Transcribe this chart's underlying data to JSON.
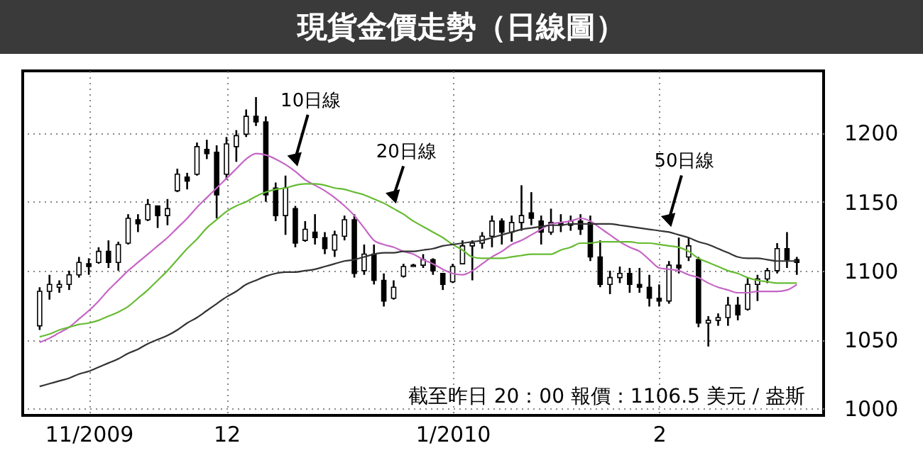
{
  "chart_data": {
    "type": "candlestick",
    "title": "現貨金價走勢（日線圖）",
    "annotations": [
      "截至昨日 20：00 報價：1106.5 美元 / 盎斯"
    ],
    "categories": [
      null,
      null,
      null,
      null,
      null,
      "11/2009",
      null,
      null,
      null,
      null,
      null,
      null,
      null,
      null,
      null,
      null,
      null,
      null,
      null,
      "12",
      null,
      null,
      null,
      null,
      null,
      null,
      null,
      null,
      null,
      null,
      null,
      null,
      null,
      null,
      null,
      null,
      null,
      null,
      null,
      null,
      null,
      null,
      "1/2010",
      null,
      null,
      null,
      null,
      null,
      null,
      null,
      null,
      null,
      null,
      null,
      null,
      null,
      null,
      null,
      null,
      null,
      null,
      null,
      null,
      "2",
      null,
      null,
      null,
      null,
      null,
      null,
      null,
      null,
      null,
      null,
      null,
      null,
      null,
      null
    ],
    "ohlc": [
      [
        1060,
        1088,
        1057,
        1085
      ],
      [
        1085,
        1097,
        1079,
        1090
      ],
      [
        1088,
        1093,
        1084,
        1090
      ],
      [
        1090,
        1100,
        1086,
        1097
      ],
      [
        1097,
        1110,
        1095,
        1106
      ],
      [
        1105,
        1109,
        1097,
        1103
      ],
      [
        1106,
        1117,
        1105,
        1114
      ],
      [
        1114,
        1122,
        1102,
        1106
      ],
      [
        1106,
        1121,
        1100,
        1119
      ],
      [
        1120,
        1141,
        1119,
        1138
      ],
      [
        1137,
        1141,
        1128,
        1134
      ],
      [
        1137,
        1152,
        1136,
        1148
      ],
      [
        1147,
        1147,
        1131,
        1140
      ],
      [
        1140,
        1152,
        1133,
        1145
      ],
      [
        1158,
        1174,
        1157,
        1170
      ],
      [
        1168,
        1171,
        1159,
        1165
      ],
      [
        1170,
        1193,
        1169,
        1190
      ],
      [
        1188,
        1195,
        1181,
        1185
      ],
      [
        1186,
        1191,
        1138,
        1155
      ],
      [
        1170,
        1197,
        1166,
        1192
      ],
      [
        1190,
        1202,
        1179,
        1198
      ],
      [
        1199,
        1217,
        1197,
        1212
      ],
      [
        1212,
        1226,
        1205,
        1208
      ],
      [
        1208,
        1212,
        1150,
        1155
      ],
      [
        1160,
        1164,
        1136,
        1140
      ],
      [
        1140,
        1169,
        1126,
        1160
      ],
      [
        1145,
        1147,
        1117,
        1120
      ],
      [
        1122,
        1136,
        1121,
        1130
      ],
      [
        1128,
        1141,
        1119,
        1124
      ],
      [
        1124,
        1128,
        1112,
        1116
      ],
      [
        1115,
        1129,
        1110,
        1126
      ],
      [
        1125,
        1140,
        1122,
        1137
      ],
      [
        1137,
        1141,
        1095,
        1098
      ],
      [
        1100,
        1119,
        1097,
        1112
      ],
      [
        1112,
        1119,
        1090,
        1093
      ],
      [
        1093,
        1098,
        1074,
        1078
      ],
      [
        1080,
        1093,
        1079,
        1088
      ],
      [
        1096,
        1105,
        1095,
        1103
      ],
      [
        1103,
        1105,
        1103,
        1104
      ],
      [
        1104,
        1112,
        1102,
        1108
      ],
      [
        1108,
        1109,
        1097,
        1100
      ],
      [
        1098,
        1098,
        1086,
        1090
      ],
      [
        1092,
        1105,
        1091,
        1103
      ],
      [
        1105,
        1122,
        1105,
        1118
      ],
      [
        1118,
        1122,
        1093,
        1120
      ],
      [
        1120,
        1128,
        1116,
        1125
      ],
      [
        1125,
        1140,
        1117,
        1136
      ],
      [
        1136,
        1138,
        1119,
        1128
      ],
      [
        1128,
        1140,
        1121,
        1135
      ],
      [
        1135,
        1162,
        1129,
        1140
      ],
      [
        1142,
        1157,
        1133,
        1138
      ],
      [
        1136,
        1140,
        1119,
        1128
      ],
      [
        1128,
        1145,
        1126,
        1135
      ],
      [
        1135,
        1141,
        1128,
        1133
      ],
      [
        1133,
        1140,
        1129,
        1136
      ],
      [
        1136,
        1141,
        1126,
        1130
      ],
      [
        1135,
        1140,
        1107,
        1110
      ],
      [
        1110,
        1122,
        1088,
        1090
      ],
      [
        1090,
        1100,
        1083,
        1095
      ],
      [
        1095,
        1103,
        1091,
        1098
      ],
      [
        1098,
        1102,
        1084,
        1090
      ],
      [
        1090,
        1102,
        1084,
        1088
      ],
      [
        1088,
        1097,
        1074,
        1080
      ],
      [
        1080,
        1090,
        1074,
        1078
      ],
      [
        1078,
        1107,
        1076,
        1104
      ],
      [
        1104,
        1124,
        1098,
        1102
      ],
      [
        1110,
        1124,
        1107,
        1118
      ],
      [
        1108,
        1110,
        1059,
        1062
      ],
      [
        1062,
        1067,
        1045,
        1064
      ],
      [
        1064,
        1069,
        1060,
        1066
      ],
      [
        1066,
        1081,
        1060,
        1075
      ],
      [
        1075,
        1081,
        1064,
        1068
      ],
      [
        1072,
        1095,
        1071,
        1090
      ],
      [
        1090,
        1097,
        1078,
        1094
      ],
      [
        1094,
        1102,
        1091,
        1100
      ],
      [
        1100,
        1120,
        1098,
        1116
      ],
      [
        1116,
        1128,
        1102,
        1108
      ],
      [
        1108,
        1110,
        1097,
        1106
      ]
    ],
    "series": [
      {
        "type": "line",
        "name": "10日線",
        "color": "#c565c5",
        "values": [
          1048,
          1051,
          1055,
          1059,
          1065,
          1071,
          1078,
          1086,
          1093,
          1100,
          1106,
          1112,
          1118,
          1124,
          1131,
          1138,
          1146,
          1153,
          1160,
          1167,
          1174,
          1181,
          1185,
          1184,
          1181,
          1177,
          1172,
          1166,
          1162,
          1158,
          1153,
          1147,
          1140,
          1131,
          1122,
          1119,
          1117,
          1114,
          1112,
          1108,
          1105,
          1101,
          1098,
          1097,
          1100,
          1105,
          1110,
          1114,
          1119,
          1122,
          1126,
          1130,
          1134,
          1135,
          1136,
          1138,
          1136,
          1131,
          1126,
          1121,
          1117,
          1114,
          1108,
          1102,
          1101,
          1100,
          1097,
          1095,
          1091,
          1088,
          1086,
          1084,
          1084,
          1085,
          1085,
          1085,
          1086,
          1090
        ]
      },
      {
        "type": "line",
        "name": "20日線",
        "color": "#66bb33",
        "values": [
          1052,
          1054,
          1057,
          1059,
          1061,
          1062,
          1064,
          1067,
          1070,
          1074,
          1080,
          1086,
          1093,
          1100,
          1108,
          1116,
          1123,
          1131,
          1137,
          1143,
          1147,
          1150,
          1154,
          1157,
          1159,
          1160,
          1162,
          1163,
          1163,
          1162,
          1160,
          1159,
          1157,
          1155,
          1152,
          1149,
          1145,
          1141,
          1136,
          1132,
          1128,
          1124,
          1119,
          1115,
          1110,
          1109,
          1109,
          1109,
          1110,
          1111,
          1112,
          1112,
          1112,
          1115,
          1117,
          1120,
          1120,
          1121,
          1121,
          1121,
          1121,
          1120,
          1120,
          1119,
          1118,
          1117,
          1114,
          1109,
          1106,
          1103,
          1100,
          1098,
          1095,
          1093,
          1092,
          1091,
          1091,
          1091
        ]
      },
      {
        "type": "line",
        "name": "50日線",
        "color": "#333333",
        "values": [
          1016,
          1018,
          1020,
          1022,
          1025,
          1027,
          1030,
          1033,
          1036,
          1040,
          1043,
          1047,
          1050,
          1053,
          1057,
          1062,
          1066,
          1071,
          1076,
          1081,
          1085,
          1090,
          1093,
          1096,
          1098,
          1099,
          1099,
          1100,
          1101,
          1103,
          1105,
          1107,
          1108,
          1110,
          1112,
          1113,
          1113,
          1114,
          1114,
          1115,
          1116,
          1118,
          1119,
          1120,
          1121,
          1122,
          1124,
          1126,
          1128,
          1130,
          1131,
          1132,
          1133,
          1133,
          1134,
          1134,
          1134,
          1134,
          1134,
          1133,
          1132,
          1131,
          1130,
          1129,
          1128,
          1126,
          1124,
          1121,
          1119,
          1116,
          1113,
          1110,
          1109,
          1109,
          1108,
          1107,
          1107,
          1107
        ]
      }
    ],
    "ylim": [
      995,
      1245
    ],
    "yticks": [
      1000,
      1050,
      1100,
      1150,
      1200
    ],
    "grid": true
  }
}
